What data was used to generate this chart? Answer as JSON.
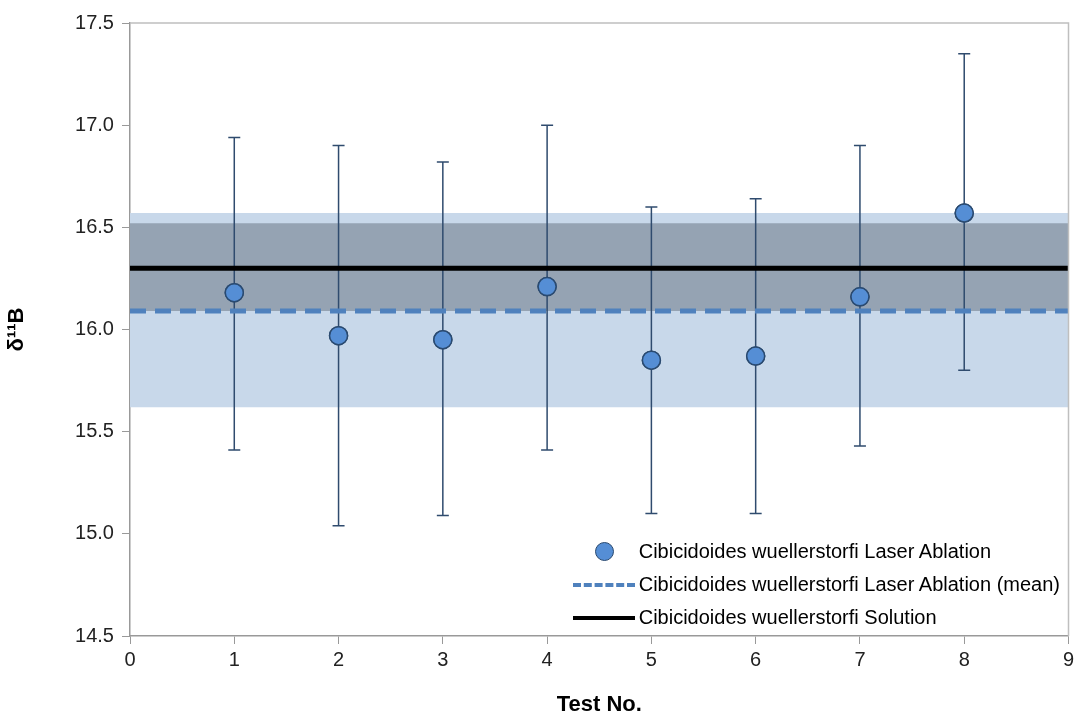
{
  "chart_data": {
    "type": "scatter",
    "xlabel": "Test No.",
    "ylabel": "δ¹¹B",
    "xlim": [
      0,
      9
    ],
    "xticks": [
      0,
      1,
      2,
      3,
      4,
      5,
      6,
      7,
      8,
      9
    ],
    "ylim": [
      14.5,
      17.5
    ],
    "yticks": [
      14.5,
      {
        "value": 15,
        "label": "15.0"
      },
      15.5,
      {
        "value": 16,
        "label": "16.0"
      },
      16.5,
      {
        "value": 17,
        "label": "17.0"
      },
      17.5
    ],
    "grid": false,
    "legend": "bottom right",
    "marker": "circle",
    "x": [
      1,
      2,
      3,
      4,
      5,
      6,
      7,
      8
    ],
    "series": [
      {
        "name": "Cibicidoides wuellerstorfi Laser Ablation",
        "type": "scatter",
        "color": "#558ed5",
        "values": [
          16.18,
          15.97,
          15.95,
          16.21,
          15.85,
          15.87,
          16.16,
          16.57
        ],
        "errors": [
          [
            15.41,
            16.94
          ],
          [
            15.04,
            16.9
          ],
          [
            15.09,
            16.82
          ],
          [
            15.41,
            17.0
          ],
          [
            15.1,
            16.6
          ],
          [
            15.1,
            16.64
          ],
          [
            15.43,
            16.9
          ],
          [
            15.8,
            17.35
          ]
        ]
      }
    ],
    "ref_lines": [
      {
        "axis": "y",
        "value": 16.09,
        "label": "Cibicidoides wuellerstorfi Laser Ablation (mean)",
        "color": "#4f81bd",
        "line_style": "dashed"
      },
      {
        "axis": "y",
        "value": 16.3,
        "label": "Cibicidoides wuellerstorfi Solution",
        "color": "#000000",
        "line_style": "solid"
      }
    ],
    "bands": [
      {
        "axis": "y",
        "from": 15.62,
        "to": 16.57,
        "color": "#c8d8ea"
      },
      {
        "axis": "y",
        "from": 16.09,
        "to": 16.52,
        "color": "#95a3b3"
      }
    ]
  }
}
